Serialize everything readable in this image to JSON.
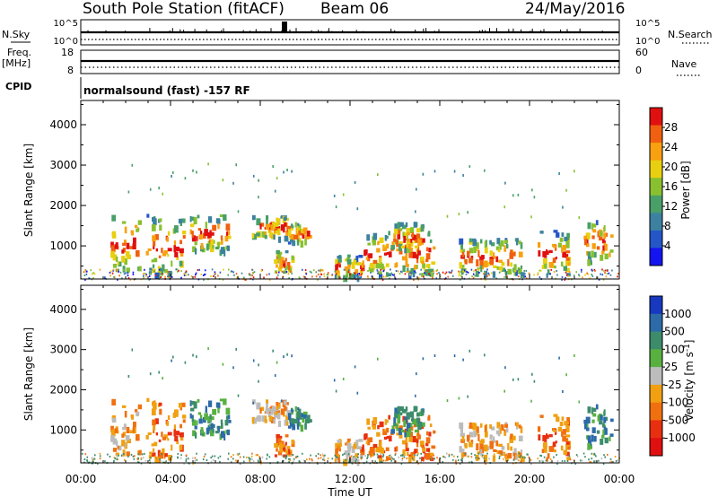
{
  "header": {
    "station": "South Pole Station (fitACF)",
    "beam": "Beam 06",
    "date": "24/May/2016"
  },
  "top_panels": {
    "nsky_label": "N.Sky",
    "nsky_ticks": [
      "10^5",
      "10^0"
    ],
    "nsearch_label": "N.Search",
    "nsearch_ticks": [
      "10^5",
      "10^0"
    ],
    "freq_label_1": "Freq.",
    "freq_label_2": "[MHz]",
    "freq_ticks": [
      "18",
      "8"
    ],
    "nave_label": "Nave",
    "nave_ticks": [
      "60",
      "0"
    ],
    "cpid_label": "CPID",
    "cpid_text": "normalsound (fast) -157 RF"
  },
  "chart_data": [
    {
      "type": "heatmap",
      "quantity": "power",
      "ylabel": "Slant Range [km]",
      "yticks": [
        "1000",
        "2000",
        "3000",
        "4000"
      ],
      "ylim": [
        180,
        4600
      ],
      "xlim": [
        0,
        24
      ],
      "colorbar_label": "Power [dB]",
      "colorbar_ticks": [
        "4",
        "8",
        "12",
        "16",
        "20",
        "24",
        "28"
      ],
      "colorbar_range": [
        0,
        32
      ],
      "colors": [
        "#1414f0",
        "#2456c8",
        "#3c82a0",
        "#48a068",
        "#88c030",
        "#e8d010",
        "#f8a010",
        "#f06010",
        "#e01010"
      ],
      "echo_regions": [
        {
          "t0": 1.3,
          "t1": 2.6,
          "r0": 400,
          "r1": 1800
        },
        {
          "t0": 2.9,
          "t1": 4.6,
          "r0": 300,
          "r1": 1800
        },
        {
          "t0": 4.8,
          "t1": 6.6,
          "r0": 900,
          "r1": 1800
        },
        {
          "t0": 7.6,
          "t1": 9.2,
          "r0": 1200,
          "r1": 1800
        },
        {
          "t0": 8.6,
          "t1": 9.4,
          "r0": 350,
          "r1": 900
        },
        {
          "t0": 9.2,
          "t1": 10.2,
          "r0": 1100,
          "r1": 1600
        },
        {
          "t0": 11.3,
          "t1": 12.5,
          "r0": 250,
          "r1": 800
        },
        {
          "t0": 12.5,
          "t1": 15.7,
          "r0": 300,
          "r1": 1400
        },
        {
          "t0": 13.8,
          "t1": 15.2,
          "r0": 900,
          "r1": 1600
        },
        {
          "t0": 16.8,
          "t1": 19.6,
          "r0": 350,
          "r1": 1200
        },
        {
          "t0": 20.3,
          "t1": 21.7,
          "r0": 300,
          "r1": 1400
        },
        {
          "t0": 22.4,
          "t1": 23.6,
          "r0": 600,
          "r1": 1700
        }
      ]
    },
    {
      "type": "heatmap",
      "quantity": "velocity",
      "ylabel": "Slant Range [km]",
      "yticks": [
        "1000",
        "2000",
        "3000",
        "4000"
      ],
      "ylim": [
        180,
        4600
      ],
      "xlim": [
        0,
        24
      ],
      "xlabel": "Time UT",
      "xticks": [
        "00:00",
        "04:00",
        "08:00",
        "12:00",
        "16:00",
        "20:00",
        "00:00"
      ],
      "colorbar_label": "Velocity [m s^-1]",
      "colorbar_ticks": [
        "1000",
        "500",
        "100",
        "25",
        "-25",
        "-100",
        "-500",
        "-1000"
      ],
      "colors": [
        "#1838c0",
        "#2c6aa8",
        "#3c8c6c",
        "#58b040",
        "#bcbcbc",
        "#f0a010",
        "#f07010",
        "#e83010",
        "#e01010"
      ],
      "echo_regions": [
        {
          "t0": 1.3,
          "t1": 2.6,
          "r0": 400,
          "r1": 1800
        },
        {
          "t0": 2.9,
          "t1": 4.6,
          "r0": 300,
          "r1": 1800
        },
        {
          "t0": 4.8,
          "t1": 6.6,
          "r0": 900,
          "r1": 1800
        },
        {
          "t0": 7.6,
          "t1": 9.2,
          "r0": 1200,
          "r1": 1800
        },
        {
          "t0": 8.6,
          "t1": 9.4,
          "r0": 350,
          "r1": 900
        },
        {
          "t0": 9.2,
          "t1": 10.2,
          "r0": 1100,
          "r1": 1600
        },
        {
          "t0": 11.3,
          "t1": 12.5,
          "r0": 250,
          "r1": 800
        },
        {
          "t0": 12.5,
          "t1": 15.7,
          "r0": 300,
          "r1": 1400
        },
        {
          "t0": 13.8,
          "t1": 15.2,
          "r0": 900,
          "r1": 1600
        },
        {
          "t0": 16.8,
          "t1": 19.6,
          "r0": 350,
          "r1": 1200
        },
        {
          "t0": 20.3,
          "t1": 21.7,
          "r0": 300,
          "r1": 1400
        },
        {
          "t0": 22.4,
          "t1": 23.6,
          "r0": 600,
          "r1": 1700
        }
      ]
    }
  ]
}
